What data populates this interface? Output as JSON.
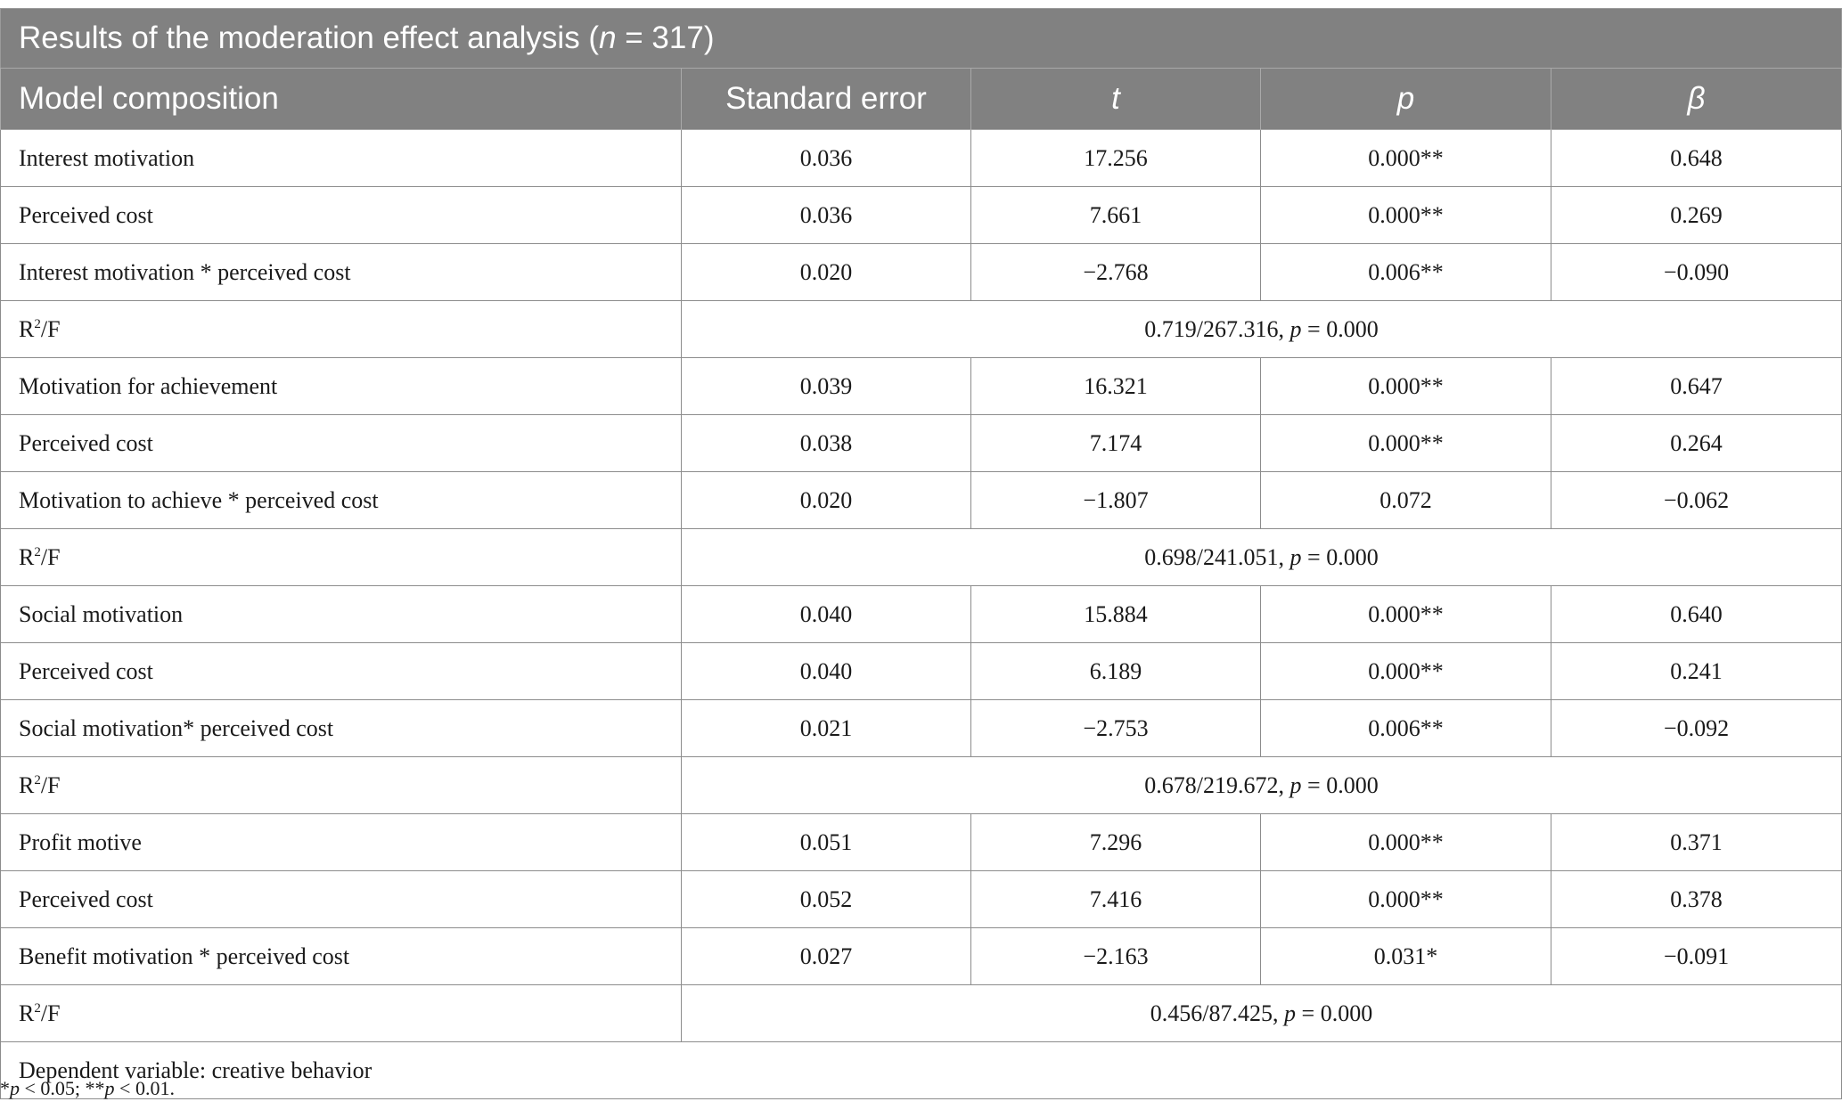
{
  "caption": {
    "prefix": "Results of the moderation effect analysis (",
    "n_symbol": "n",
    "suffix": " = 317)"
  },
  "headers": {
    "model": "Model composition",
    "se": "Standard error",
    "t": "t",
    "p": "p",
    "beta": "β"
  },
  "rows": [
    {
      "label": "Interest motivation",
      "se": "0.036",
      "t": "17.256",
      "p": "0.000**",
      "beta": "0.648"
    },
    {
      "label": "Perceived cost",
      "se": "0.036",
      "t": "7.661",
      "p": "0.000**",
      "beta": "0.269"
    },
    {
      "label": "Interest motivation * perceived cost",
      "se": "0.020",
      "t": "−2.768",
      "p": "0.006**",
      "beta": "−0.090"
    },
    {
      "label": "Motivation for achievement",
      "se": "0.039",
      "t": "16.321",
      "p": "0.000**",
      "beta": "0.647"
    },
    {
      "label": "Perceived cost",
      "se": "0.038",
      "t": "7.174",
      "p": "0.000**",
      "beta": "0.264"
    },
    {
      "label": "Motivation to achieve * perceived cost",
      "se": "0.020",
      "t": "−1.807",
      "p": "0.072",
      "beta": "−0.062"
    },
    {
      "label": "Social motivation",
      "se": "0.040",
      "t": "15.884",
      "p": "0.000**",
      "beta": "0.640"
    },
    {
      "label": "Perceived cost",
      "se": "0.040",
      "t": "6.189",
      "p": "0.000**",
      "beta": "0.241"
    },
    {
      "label": "Social motivation* perceived cost",
      "se": "0.021",
      "t": "−2.753",
      "p": "0.006**",
      "beta": "−0.092"
    },
    {
      "label": "Profit motive",
      "se": "0.051",
      "t": "7.296",
      "p": "0.000**",
      "beta": "0.371"
    },
    {
      "label": "Perceived cost",
      "se": "0.052",
      "t": "7.416",
      "p": "0.000**",
      "beta": "0.378"
    },
    {
      "label": "Benefit motivation * perceived cost",
      "se": "0.027",
      "t": "−2.163",
      "p": "0.031*",
      "beta": "−0.091"
    }
  ],
  "summaries": [
    {
      "label_base": "R",
      "label_sup": "2",
      "label_tail": "/F",
      "value": "0.719/267.316, ",
      "p_symbol": "p",
      "p_value": " = 0.000"
    },
    {
      "label_base": "R",
      "label_sup": "2",
      "label_tail": "/F",
      "value": "0.698/241.051, ",
      "p_symbol": "p",
      "p_value": " = 0.000"
    },
    {
      "label_base": "R",
      "label_sup": "2",
      "label_tail": "/F",
      "value": "0.678/219.672, ",
      "p_symbol": "p",
      "p_value": " = 0.000"
    },
    {
      "label_base": "R",
      "label_sup": "2",
      "label_tail": "/F",
      "value": "0.456/87.425, ",
      "p_symbol": "p",
      "p_value": " = 0.000"
    }
  ],
  "dependent_variable": "Dependent variable: creative behavior",
  "footnote": {
    "part1": "*",
    "p1": "p",
    "part2": " < 0.05; **",
    "p2": "p",
    "part3": " < 0.01."
  }
}
